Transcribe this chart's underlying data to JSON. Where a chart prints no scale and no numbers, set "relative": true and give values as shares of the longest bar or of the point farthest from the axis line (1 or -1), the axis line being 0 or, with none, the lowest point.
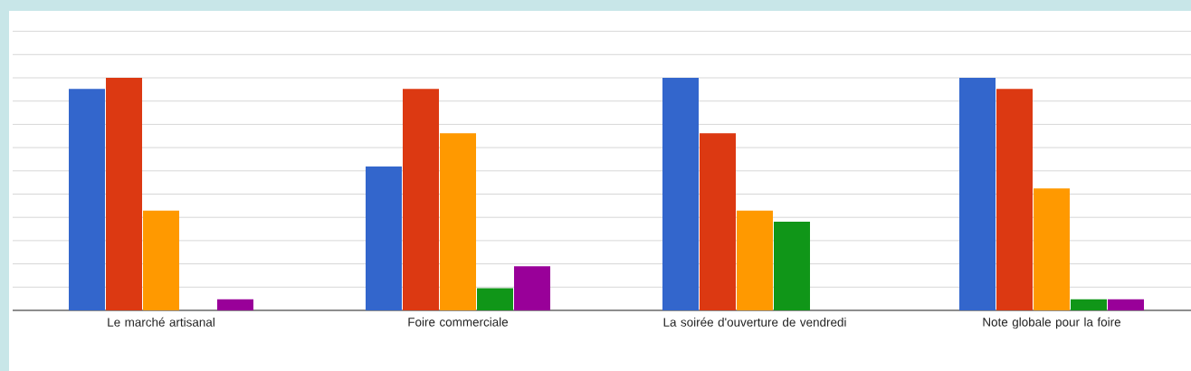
{
  "chart_data": {
    "type": "bar",
    "relative": true,
    "grid": "y",
    "categories": [
      "Le marché artisanal",
      "Foire commerciale",
      "La soirée d'ouverture de vendredi",
      "Note globale pour la foire"
    ],
    "series": [
      {
        "color": "#3366cc",
        "values": [
          0.952,
          0.619,
          1,
          1
        ]
      },
      {
        "color": "#dc3912",
        "values": [
          1,
          0.952,
          0.762,
          0.952
        ]
      },
      {
        "color": "#ff9900",
        "values": [
          0.429,
          0.762,
          0.429,
          0.524
        ]
      },
      {
        "color": "#109618",
        "values": [
          0,
          0.095,
          0.381,
          0.048
        ]
      },
      {
        "color": "#990099",
        "values": [
          0.048,
          0.19,
          0,
          0.048
        ]
      }
    ]
  }
}
